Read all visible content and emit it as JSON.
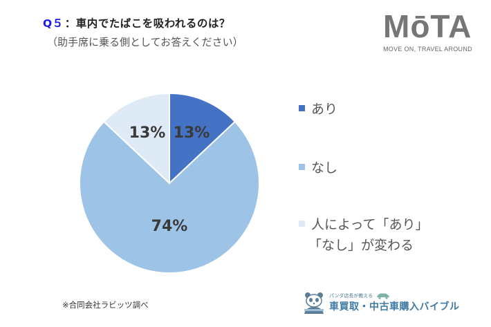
{
  "header": {
    "question_label": "Q５",
    "question_text": "：車内でたばこを吸われるのは？",
    "subtitle": "（助手席に乗る側としてお答えください）"
  },
  "logo": {
    "word": "MōTA",
    "tagline": "MOVE ON, TRAVEL AROUND"
  },
  "footer": {
    "source": "※合同会社ラビッツ調べ",
    "bible_small": "パンダ店長が教える",
    "bible_title": "車買取・中古車購入バイブル"
  },
  "chart_data": {
    "type": "pie",
    "title": "Q５：車内でたばこを吸われるのは？（助手席に乗る側としてお答えください）",
    "categories": [
      "あり",
      "なし",
      "人によって「あり」「なし」が変わる"
    ],
    "values": [
      13,
      74,
      13
    ],
    "labels": [
      "13%",
      "74%",
      "13%"
    ],
    "colors": [
      "#4472C4",
      "#9DC3E6",
      "#DEEBF7"
    ],
    "start_angle_deg": 0,
    "direction": "clockwise",
    "legend_position": "right"
  },
  "legend": {
    "items": [
      {
        "line1": "あり",
        "line2": ""
      },
      {
        "line1": "なし",
        "line2": ""
      },
      {
        "line1": "人によって「あり」",
        "line2": "「なし」が変わる"
      }
    ]
  }
}
